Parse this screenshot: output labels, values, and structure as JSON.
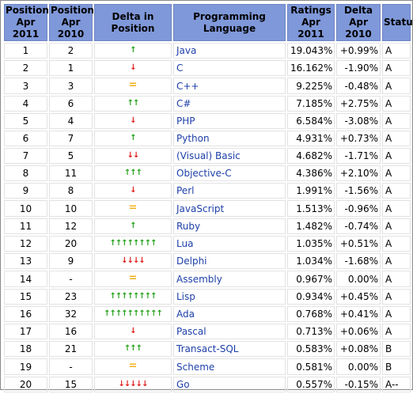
{
  "table": {
    "headers": {
      "pos2011": [
        "Position",
        "Apr 2011"
      ],
      "pos2010": [
        "Position",
        "Apr 2010"
      ],
      "delta_position": "Delta in Position",
      "language": "Programming Language",
      "ratings": [
        "Ratings",
        "Apr 2011"
      ],
      "delta": [
        "Delta",
        "Apr 2010"
      ],
      "status": "Status"
    },
    "rows": [
      {
        "pos2011": "1",
        "pos2010": "2",
        "trend": "up",
        "arrows": 1,
        "language": "Java",
        "rating": "19.043%",
        "delta": "+0.99%",
        "status": "A"
      },
      {
        "pos2011": "2",
        "pos2010": "1",
        "trend": "down",
        "arrows": 1,
        "language": "C",
        "rating": "16.162%",
        "delta": "-1.90%",
        "status": "A"
      },
      {
        "pos2011": "3",
        "pos2010": "3",
        "trend": "same",
        "arrows": 1,
        "language": "C++",
        "rating": "9.225%",
        "delta": "-0.48%",
        "status": "A"
      },
      {
        "pos2011": "4",
        "pos2010": "6",
        "trend": "up",
        "arrows": 2,
        "language": "C#",
        "rating": "7.185%",
        "delta": "+2.75%",
        "status": "A"
      },
      {
        "pos2011": "5",
        "pos2010": "4",
        "trend": "down",
        "arrows": 1,
        "language": "PHP",
        "rating": "6.584%",
        "delta": "-3.08%",
        "status": "A"
      },
      {
        "pos2011": "6",
        "pos2010": "7",
        "trend": "up",
        "arrows": 1,
        "language": "Python",
        "rating": "4.931%",
        "delta": "+0.73%",
        "status": "A"
      },
      {
        "pos2011": "7",
        "pos2010": "5",
        "trend": "down",
        "arrows": 2,
        "language": "(Visual) Basic",
        "rating": "4.682%",
        "delta": "-1.71%",
        "status": "A"
      },
      {
        "pos2011": "8",
        "pos2010": "11",
        "trend": "up",
        "arrows": 3,
        "language": "Objective-C",
        "rating": "4.386%",
        "delta": "+2.10%",
        "status": "A"
      },
      {
        "pos2011": "9",
        "pos2010": "8",
        "trend": "down",
        "arrows": 1,
        "language": "Perl",
        "rating": "1.991%",
        "delta": "-1.56%",
        "status": "A"
      },
      {
        "pos2011": "10",
        "pos2010": "10",
        "trend": "same",
        "arrows": 1,
        "language": "JavaScript",
        "rating": "1.513%",
        "delta": "-0.96%",
        "status": "A"
      },
      {
        "pos2011": "11",
        "pos2010": "12",
        "trend": "up",
        "arrows": 1,
        "language": "Ruby",
        "rating": "1.482%",
        "delta": "-0.74%",
        "status": "A"
      },
      {
        "pos2011": "12",
        "pos2010": "20",
        "trend": "up",
        "arrows": 8,
        "language": "Lua",
        "rating": "1.035%",
        "delta": "+0.51%",
        "status": "A"
      },
      {
        "pos2011": "13",
        "pos2010": "9",
        "trend": "down",
        "arrows": 4,
        "language": "Delphi",
        "rating": "1.034%",
        "delta": "-1.68%",
        "status": "A"
      },
      {
        "pos2011": "14",
        "pos2010": "-",
        "trend": "same",
        "arrows": 1,
        "language": "Assembly",
        "rating": "0.967%",
        "delta": "0.00%",
        "status": "A"
      },
      {
        "pos2011": "15",
        "pos2010": "23",
        "trend": "up",
        "arrows": 8,
        "language": "Lisp",
        "rating": "0.934%",
        "delta": "+0.45%",
        "status": "A"
      },
      {
        "pos2011": "16",
        "pos2010": "32",
        "trend": "up",
        "arrows": 10,
        "language": "Ada",
        "rating": "0.768%",
        "delta": "+0.41%",
        "status": "A"
      },
      {
        "pos2011": "17",
        "pos2010": "16",
        "trend": "down",
        "arrows": 1,
        "language": "Pascal",
        "rating": "0.713%",
        "delta": "+0.06%",
        "status": "A"
      },
      {
        "pos2011": "18",
        "pos2010": "21",
        "trend": "up",
        "arrows": 3,
        "language": "Transact-SQL",
        "rating": "0.583%",
        "delta": "+0.08%",
        "status": "B"
      },
      {
        "pos2011": "19",
        "pos2010": "-",
        "trend": "same",
        "arrows": 1,
        "language": "Scheme",
        "rating": "0.581%",
        "delta": "0.00%",
        "status": "B"
      },
      {
        "pos2011": "20",
        "pos2010": "15",
        "trend": "down",
        "arrows": 5,
        "language": "Go",
        "rating": "0.557%",
        "delta": "-0.15%",
        "status": "A--"
      }
    ]
  },
  "colors": {
    "header_bg": "#7f98d9",
    "up_arrow": "#24a11a",
    "down_arrow": "#e11b1b",
    "unchanged": "#f2b11c",
    "language_text": "#1d3fa8"
  },
  "icons": {
    "up": "green-up-arrow-icon",
    "down": "red-down-arrow-icon",
    "same": "yellow-equal-icon"
  }
}
